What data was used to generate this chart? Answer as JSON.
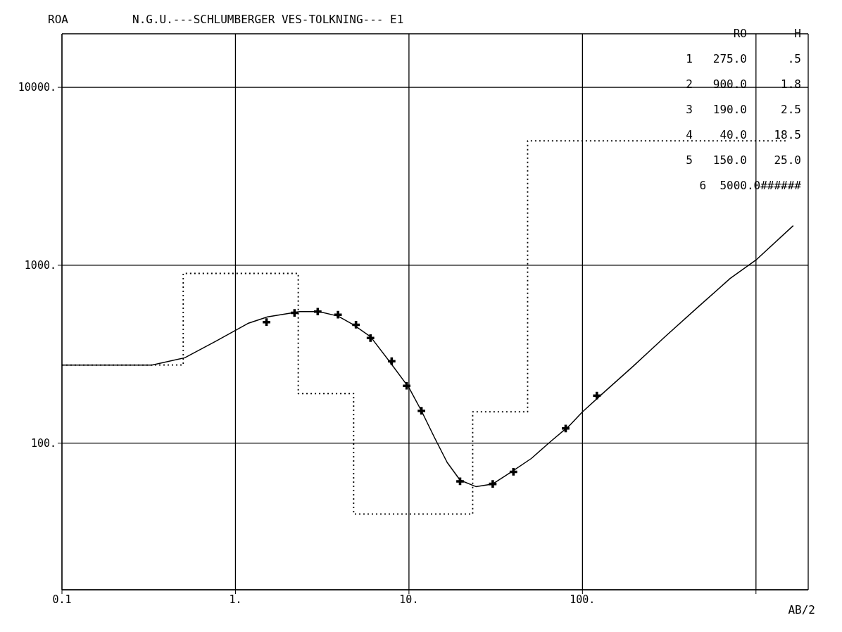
{
  "chart_data": {
    "type": "line",
    "title": "N.G.U.---SCHLUMBERGER VES-TOLKNING--- E1",
    "ylabel": "ROA",
    "xlabel": "AB/2",
    "log": "xy",
    "grid": true,
    "xlim": [
      0.1,
      2000
    ],
    "ylim": [
      15,
      20000
    ],
    "xticks": [
      {
        "value": 0.1,
        "label": "0.1"
      },
      {
        "value": 1,
        "label": "1."
      },
      {
        "value": 10,
        "label": "10."
      },
      {
        "value": 100,
        "label": "100."
      },
      {
        "value": 1000,
        "label": null
      }
    ],
    "yticks": [
      {
        "value": 100,
        "label": "100."
      },
      {
        "value": 1000,
        "label": "1000."
      },
      {
        "value": 10000,
        "label": "10000."
      }
    ],
    "annotations": [
      "RO       H",
      "1   275.0      .5",
      "2   900.0     1.8",
      "3   190.0     2.5",
      "4    40.0    18.5",
      "5   150.0    25.0",
      "6  5000.0######"
    ],
    "series": [
      {
        "type": "step",
        "color": "#000000",
        "line_style": "dotted",
        "marker": "none",
        "x": [
          0.1,
          0.5,
          2.3,
          4.8,
          23.3,
          48.3,
          1500
        ],
        "values": [
          275,
          900,
          190,
          40,
          150,
          5000,
          5000
        ]
      },
      {
        "color": "#000000",
        "line_style": "solid",
        "marker": "none",
        "x": [
          0.1,
          0.33,
          0.51,
          0.77,
          1.18,
          1.53,
          2.35,
          3.03,
          3.9,
          4.8,
          6.0,
          7.7,
          10,
          11.8,
          14,
          16.6,
          19.7,
          24.3,
          30.4,
          39,
          50.7,
          65.4,
          84.5,
          100,
          129,
          197,
          302,
          464,
          710,
          1000,
          1640
        ],
        "values": [
          275,
          275,
          302,
          374,
          471,
          513,
          549,
          549,
          518,
          462,
          397,
          289,
          205,
          152,
          108,
          78,
          62,
          57,
          59,
          69,
          82,
          102,
          126,
          150,
          188,
          272,
          400,
          583,
          843,
          1070,
          1670
        ]
      },
      {
        "type": "scatter",
        "color": "#000000",
        "marker": "cross",
        "x": [
          1.51,
          2.19,
          2.98,
          3.9,
          4.95,
          6.0,
          7.95,
          9.7,
          11.8,
          19.7,
          30.4,
          40,
          80,
          121
        ],
        "values": [
          479,
          540,
          549,
          527,
          463,
          390,
          289,
          210,
          152,
          61,
          59,
          69,
          121,
          185
        ]
      }
    ]
  }
}
